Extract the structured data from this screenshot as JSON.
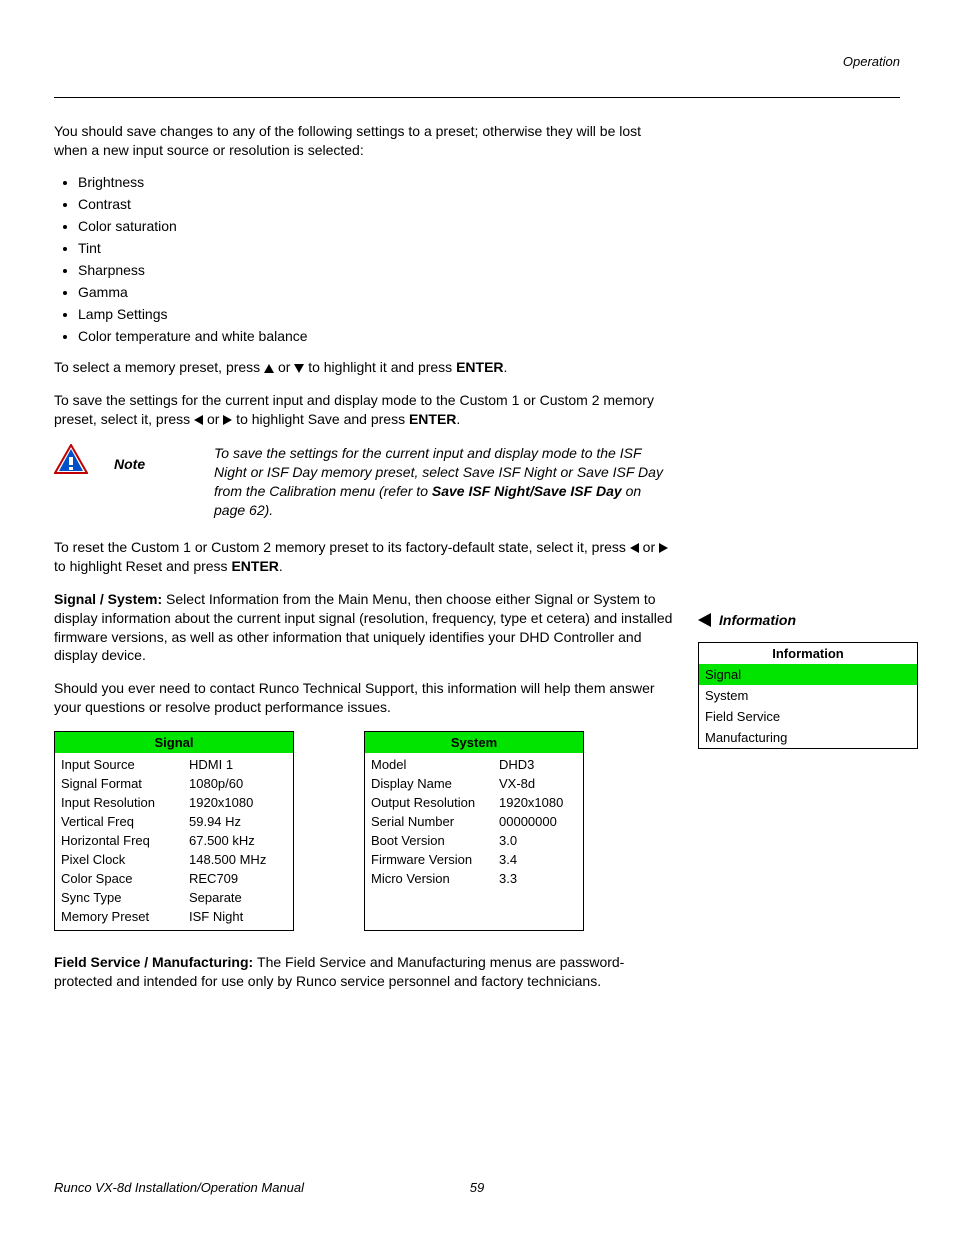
{
  "header": {
    "section": "Operation"
  },
  "intro": {
    "p1": "You should save changes to any of the following settings to a preset; otherwise they will be lost when a new input source or resolution is selected:",
    "bullets": [
      "Brightness",
      "Contrast",
      "Color saturation",
      "Tint",
      "Sharpness",
      "Gamma",
      "Lamp Settings",
      "Color temperature and white balance"
    ],
    "select_pre": "To select a memory preset, press ",
    "select_mid": " or ",
    "select_post": " to highlight it and press ",
    "enter_label": "ENTER",
    "period": ".",
    "save_pre": "To save the settings for the current input and display mode to the Custom 1 or Custom 2 memory preset, select it, press ",
    "save_mid": " or ",
    "save_post": " to highlight Save and press "
  },
  "note": {
    "label": "Note",
    "body_pre": "To save the settings for the current input and display mode to the ISF Night or ISF Day memory preset, select Save ISF Night or Save ISF Day from the Calibration menu (refer to ",
    "body_bold": "Save ISF Night/Save ISF Day",
    "body_post": " on page 62)."
  },
  "reset": {
    "pre": "To reset the Custom 1 or Custom 2 memory preset to its factory-default state, select it, press ",
    "mid": " or ",
    "post": " to highlight Reset and press "
  },
  "signal_system": {
    "heading": "Signal / System: ",
    "body": "Select Information from the Main Menu, then choose either Signal or System to display information about the current input signal (resolution, frequency, type et cetera) and installed firmware versions, as well as other information that uniquely identifies your DHD Controller and display device.",
    "p2": "Should you ever need to contact Runco Technical Support, this information will help them answer your questions or resolve product performance issues."
  },
  "side": {
    "heading": "Information",
    "info_table": {
      "title": "Information",
      "rows": [
        "Signal",
        "System",
        "Field Service",
        "Manufacturing"
      ],
      "selected_index": 0
    }
  },
  "signal_table": {
    "title": "Signal",
    "rows": [
      {
        "k": "Input Source",
        "v": "HDMI 1"
      },
      {
        "k": "Signal Format",
        "v": "1080p/60"
      },
      {
        "k": "Input Resolution",
        "v": "1920x1080"
      },
      {
        "k": "Vertical Freq",
        "v": "59.94 Hz"
      },
      {
        "k": "Horizontal Freq",
        "v": "67.500 kHz"
      },
      {
        "k": "Pixel Clock",
        "v": "148.500 MHz"
      },
      {
        "k": "Color Space",
        "v": "REC709"
      },
      {
        "k": "Sync Type",
        "v": "Separate"
      },
      {
        "k": "Memory Preset",
        "v": "ISF Night"
      }
    ]
  },
  "system_table": {
    "title": "System",
    "rows": [
      {
        "k": "Model",
        "v": "DHD3"
      },
      {
        "k": "Display Name",
        "v": "VX-8d"
      },
      {
        "k": "Output Resolution",
        "v": "1920x1080"
      },
      {
        "k": "Serial Number",
        "v": "00000000"
      },
      {
        "k": "Boot Version",
        "v": "3.0"
      },
      {
        "k": "Firmware Version",
        "v": "3.4"
      },
      {
        "k": "Micro Version",
        "v": "3.3"
      }
    ]
  },
  "field_service": {
    "heading": "Field Service / Manufacturing: ",
    "body": "The Field Service and Manufacturing menus are password-protected and intended for use only by Runco service personnel and factory technicians."
  },
  "footer": {
    "manual": "Runco VX-8d Installation/Operation Manual",
    "page": "59"
  },
  "colors": {
    "highlight": "#00e400"
  }
}
